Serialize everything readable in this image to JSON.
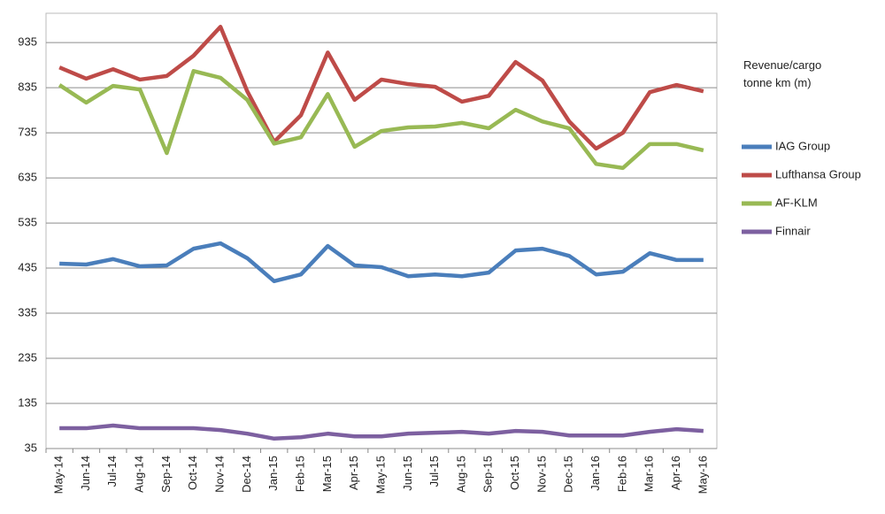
{
  "chart_data": {
    "type": "line",
    "legend_title": "Revenue/cargo tonne km (m)",
    "categories": [
      "May-14",
      "Jun-14",
      "Jul-14",
      "Aug-14",
      "Sep-14",
      "Oct-14",
      "Nov-14",
      "Dec-14",
      "Jan-15",
      "Feb-15",
      "Mar-15",
      "Apr-15",
      "May-15",
      "Jun-15",
      "Jul-15",
      "Aug-15",
      "Sep-15",
      "Oct-15",
      "Nov-15",
      "Dec-15",
      "Jan-16",
      "Feb-16",
      "Mar-16",
      "Apr-16",
      "May-16"
    ],
    "series": [
      {
        "name": "IAG Group",
        "color": "#4a7ebb",
        "values": [
          445,
          443,
          455,
          439,
          441,
          478,
          490,
          457,
          406,
          421,
          484,
          441,
          437,
          417,
          421,
          417,
          425,
          474,
          478,
          462,
          421,
          427,
          468,
          453,
          453
        ]
      },
      {
        "name": "Lufthansa Group",
        "color": "#be4b48",
        "values": [
          880,
          855,
          876,
          853,
          861,
          906,
          970,
          827,
          715,
          774,
          913,
          808,
          853,
          843,
          837,
          804,
          817,
          892,
          851,
          760,
          700,
          735,
          825,
          841,
          827
        ]
      },
      {
        "name": "AF-KLM",
        "color": "#98b954",
        "values": [
          841,
          802,
          839,
          831,
          690,
          872,
          857,
          808,
          711,
          725,
          821,
          704,
          739,
          747,
          749,
          757,
          745,
          786,
          760,
          745,
          666,
          657,
          710,
          710,
          696
        ]
      },
      {
        "name": "Finnair",
        "color": "#7d60a0",
        "values": [
          80,
          80,
          86,
          80,
          80,
          80,
          76,
          68,
          57,
          60,
          68,
          62,
          62,
          68,
          70,
          72,
          68,
          74,
          72,
          64,
          64,
          64,
          72,
          78,
          74
        ]
      }
    ],
    "ylim": [
      35,
      1000
    ],
    "yticks": [
      35,
      135,
      235,
      335,
      435,
      535,
      635,
      735,
      835,
      935
    ],
    "grid": true,
    "legend": "right"
  }
}
